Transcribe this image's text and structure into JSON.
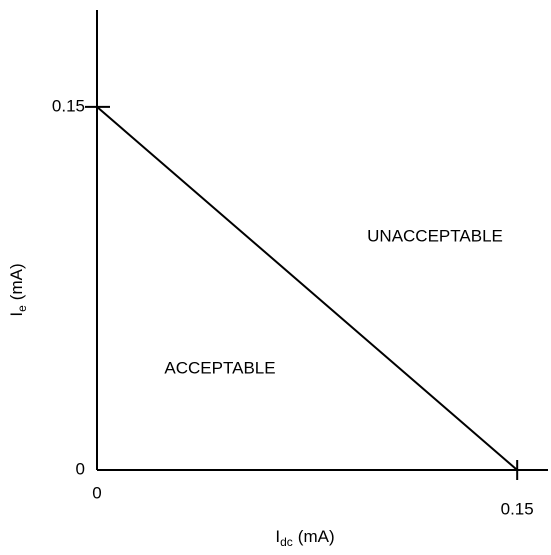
{
  "chart_data": {
    "type": "line",
    "x": [
      0,
      0.15
    ],
    "values": [
      0.15,
      0
    ],
    "color": "#000000",
    "xlim": [
      0,
      0.161
    ],
    "ylim": [
      0,
      0.19
    ],
    "xticks": [
      0,
      0.15
    ],
    "yticks": [
      0,
      0.15
    ],
    "xlabel": {
      "main": "I",
      "sub": "dc",
      "rest": "(mA)"
    },
    "ylabel": {
      "main": "I",
      "sub": "e",
      "rest": "(mA)"
    },
    "annotations": [
      "UNACCEPTABLE",
      "ACCEPTABLE"
    ],
    "grid": false
  }
}
